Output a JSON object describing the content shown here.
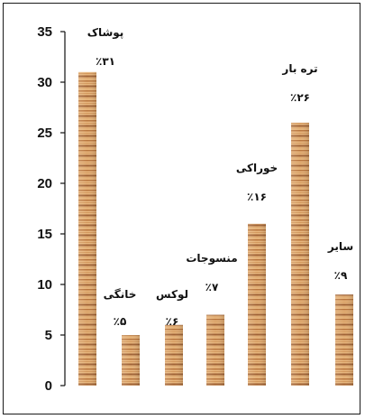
{
  "chart_data": {
    "type": "bar",
    "title": "",
    "xlabel": "",
    "ylabel": "",
    "ylim": [
      0,
      35
    ],
    "yticks": [
      0,
      5,
      10,
      15,
      20,
      25,
      30,
      35
    ],
    "grid": false,
    "legend": "none",
    "categories": [
      "پوشاک",
      "خانگی",
      "لوکس",
      "منسوجات",
      "خوراکی",
      "تره بار",
      "سایر"
    ],
    "values": [
      31,
      5,
      6,
      7,
      16,
      26,
      9
    ],
    "value_labels": [
      "٪۳۱",
      "٪۵",
      "٪۶",
      "٪۷",
      "٪۱۶",
      "٪۲۶",
      "٪۹"
    ],
    "colors": {
      "bar_light": "#e7b57c",
      "bar_dark": "#9c5a2c",
      "axis": "#111111"
    }
  }
}
